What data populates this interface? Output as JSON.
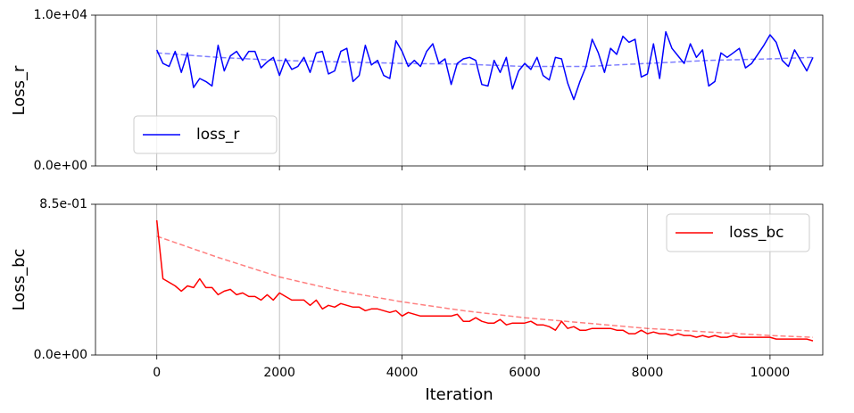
{
  "chart_data": [
    {
      "type": "line",
      "ylabel": "Loss_r",
      "xlim": [
        -1000,
        10860
      ],
      "ylim": [
        0,
        10000
      ],
      "xticks": [
        0,
        2000,
        4000,
        6000,
        8000,
        10000
      ],
      "show_xticklabels": false,
      "yticks": [
        {
          "value": 10000,
          "label": "1.0e+04"
        },
        {
          "value": 0,
          "label": "0.0e+00"
        }
      ],
      "grid": "x",
      "legend": "lower left",
      "x": [
        0,
        100,
        200,
        300,
        400,
        500,
        600,
        700,
        800,
        900,
        1000,
        1100,
        1200,
        1300,
        1400,
        1500,
        1600,
        1700,
        1800,
        1900,
        2000,
        2100,
        2200,
        2300,
        2400,
        2500,
        2600,
        2700,
        2800,
        2900,
        3000,
        3100,
        3200,
        3300,
        3400,
        3500,
        3600,
        3700,
        3800,
        3900,
        4000,
        4100,
        4200,
        4300,
        4400,
        4500,
        4600,
        4700,
        4800,
        4900,
        5000,
        5100,
        5200,
        5300,
        5400,
        5500,
        5600,
        5700,
        5800,
        5900,
        6000,
        6100,
        6200,
        6300,
        6400,
        6500,
        6600,
        6700,
        6800,
        6900,
        7000,
        7100,
        7200,
        7300,
        7400,
        7500,
        7600,
        7700,
        7800,
        7900,
        8000,
        8100,
        8200,
        8300,
        8400,
        8500,
        8600,
        8700,
        8800,
        8900,
        9000,
        9100,
        9200,
        9300,
        9400,
        9500,
        9600,
        9700,
        9800,
        9900,
        10000,
        10100,
        10200,
        10300,
        10400,
        10500,
        10600,
        10700
      ],
      "series": [
        {
          "name": "loss_r",
          "color": "blue",
          "values": [
            7700,
            6800,
            6600,
            7600,
            6200,
            7500,
            5200,
            5800,
            5600,
            5300,
            8000,
            6300,
            7300,
            7600,
            7000,
            7600,
            7600,
            6500,
            6900,
            7200,
            6000,
            7100,
            6400,
            6600,
            7200,
            6200,
            7500,
            7600,
            6100,
            6300,
            7600,
            7800,
            5600,
            6000,
            8000,
            6700,
            7000,
            6000,
            5800,
            8300,
            7600,
            6600,
            7000,
            6600,
            7600,
            8100,
            6800,
            7100,
            5400,
            6800,
            7100,
            7200,
            7000,
            5400,
            5300,
            7000,
            6200,
            7200,
            5100,
            6300,
            6800,
            6400,
            7200,
            6000,
            5700,
            7200,
            7100,
            5500,
            4400,
            5600,
            6600,
            8400,
            7500,
            6200,
            7800,
            7400,
            8600,
            8200,
            8400,
            5900,
            6100,
            8100,
            5800,
            8900,
            7800,
            7300,
            6800,
            8100,
            7200,
            7700,
            5300,
            5600,
            7500,
            7200,
            7500,
            7800,
            6500,
            6800,
            7400,
            8000,
            8700,
            8200,
            7000,
            6600,
            7700,
            7000,
            6300,
            7200
          ]
        },
        {
          "color": "blue",
          "alpha": 0.5,
          "dashed": true,
          "x": [
            0,
            1000,
            2000,
            3000,
            4000,
            5000,
            6000,
            7000,
            8000,
            9000,
            10000,
            10700
          ],
          "values": [
            7500,
            7200,
            7000,
            6900,
            6800,
            6750,
            6600,
            6600,
            6800,
            7000,
            7100,
            7200
          ]
        }
      ]
    },
    {
      "type": "line",
      "xlabel": "Iteration",
      "ylabel": "Loss_bc",
      "xlim": [
        -1000,
        10860
      ],
      "ylim": [
        0,
        0.85
      ],
      "xticks": [
        0,
        2000,
        4000,
        6000,
        8000,
        10000
      ],
      "show_xticklabels": true,
      "yticks": [
        {
          "value": 0.85,
          "label": "8.5e-01"
        },
        {
          "value": 0,
          "label": "0.0e+00"
        }
      ],
      "grid": "x",
      "legend": "upper right",
      "x": [
        0,
        100,
        200,
        300,
        400,
        500,
        600,
        700,
        800,
        900,
        1000,
        1100,
        1200,
        1300,
        1400,
        1500,
        1600,
        1700,
        1800,
        1900,
        2000,
        2100,
        2200,
        2300,
        2400,
        2500,
        2600,
        2700,
        2800,
        2900,
        3000,
        3100,
        3200,
        3300,
        3400,
        3500,
        3600,
        3700,
        3800,
        3900,
        4000,
        4100,
        4200,
        4300,
        4400,
        4500,
        4600,
        4700,
        4800,
        4900,
        5000,
        5100,
        5200,
        5300,
        5400,
        5500,
        5600,
        5700,
        5800,
        5900,
        6000,
        6100,
        6200,
        6300,
        6400,
        6500,
        6600,
        6700,
        6800,
        6900,
        7000,
        7100,
        7200,
        7300,
        7400,
        7500,
        7600,
        7700,
        7800,
        7900,
        8000,
        8100,
        8200,
        8300,
        8400,
        8500,
        8600,
        8700,
        8800,
        8900,
        9000,
        9100,
        9200,
        9300,
        9400,
        9500,
        9600,
        9700,
        9800,
        9900,
        10000,
        10100,
        10200,
        10300,
        10400,
        10500,
        10600,
        10700
      ],
      "series": [
        {
          "name": "loss_bc",
          "color": "red",
          "values": [
            0.76,
            0.43,
            0.41,
            0.39,
            0.36,
            0.39,
            0.38,
            0.43,
            0.38,
            0.38,
            0.34,
            0.36,
            0.37,
            0.34,
            0.35,
            0.33,
            0.33,
            0.31,
            0.34,
            0.31,
            0.35,
            0.33,
            0.31,
            0.31,
            0.31,
            0.28,
            0.31,
            0.26,
            0.28,
            0.27,
            0.29,
            0.28,
            0.27,
            0.27,
            0.25,
            0.26,
            0.26,
            0.25,
            0.24,
            0.25,
            0.22,
            0.24,
            0.23,
            0.22,
            0.22,
            0.22,
            0.22,
            0.22,
            0.22,
            0.23,
            0.19,
            0.19,
            0.21,
            0.19,
            0.18,
            0.18,
            0.2,
            0.17,
            0.18,
            0.18,
            0.18,
            0.19,
            0.17,
            0.17,
            0.16,
            0.14,
            0.19,
            0.15,
            0.16,
            0.14,
            0.14,
            0.15,
            0.15,
            0.15,
            0.15,
            0.14,
            0.14,
            0.12,
            0.12,
            0.14,
            0.12,
            0.13,
            0.12,
            0.12,
            0.11,
            0.12,
            0.11,
            0.11,
            0.1,
            0.11,
            0.1,
            0.11,
            0.1,
            0.1,
            0.11,
            0.1,
            0.1,
            0.1,
            0.1,
            0.1,
            0.1,
            0.09,
            0.09,
            0.09,
            0.09,
            0.09,
            0.09,
            0.08
          ]
        },
        {
          "color": "red",
          "alpha": 0.5,
          "dashed": true,
          "x": [
            0,
            1000,
            2000,
            3000,
            4000,
            5000,
            6000,
            7000,
            8000,
            9000,
            10000,
            10700
          ],
          "values": [
            0.67,
            0.55,
            0.44,
            0.36,
            0.3,
            0.25,
            0.21,
            0.18,
            0.15,
            0.13,
            0.11,
            0.1
          ]
        }
      ]
    }
  ]
}
